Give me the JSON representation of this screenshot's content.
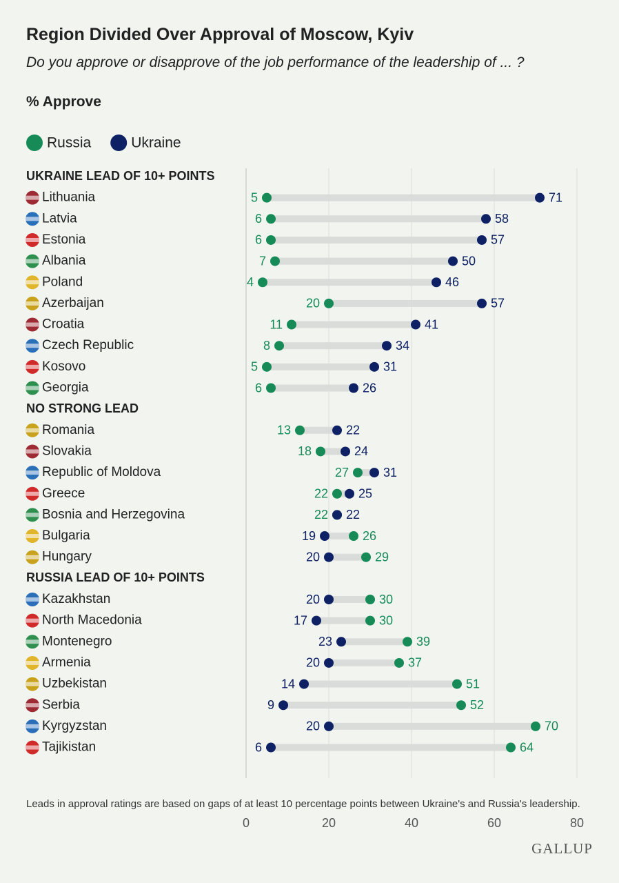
{
  "chart_data": {
    "type": "dumbbell",
    "title": "Region Divided Over Approval of Moscow, Kyiv",
    "subtitle": "Do you approve or disapprove of the job performance of the leadership of ... ?",
    "value_label": "% Approve",
    "footnote": "Leads in approval ratings are based on gaps of at least 10 percentage points between Ukraine's and Russia's leadership.",
    "source": "GALLUP",
    "xlim": [
      0,
      80
    ],
    "xticks": [
      0,
      20,
      40,
      60,
      80
    ],
    "grid": true,
    "groups": [
      {
        "name": "UKRAINE LEAD OF 10+ POINTS",
        "categories": [
          "Lithuania",
          "Latvia",
          "Estonia",
          "Albania",
          "Poland",
          "Azerbaijan",
          "Croatia",
          "Czech Republic",
          "Kosovo",
          "Georgia"
        ]
      },
      {
        "name": "NO STRONG LEAD",
        "categories": [
          "Romania",
          "Slovakia",
          "Republic of Moldova",
          "Greece",
          "Bosnia and Herzegovina",
          "Bulgaria",
          "Hungary"
        ]
      },
      {
        "name": "RUSSIA LEAD OF 10+ POINTS",
        "categories": [
          "Kazakhstan",
          "North Macedonia",
          "Montenegro",
          "Armenia",
          "Uzbekistan",
          "Serbia",
          "Kyrgyzstan",
          "Tajikistan"
        ]
      }
    ],
    "series": [
      {
        "name": "Russia",
        "color": "#168a57",
        "values": [
          [
            5,
            6,
            6,
            7,
            4,
            20,
            11,
            8,
            5,
            6
          ],
          [
            13,
            18,
            27,
            22,
            22,
            26,
            29
          ],
          [
            30,
            30,
            39,
            37,
            51,
            52,
            70,
            64
          ]
        ]
      },
      {
        "name": "Ukraine",
        "color": "#0e2164",
        "values": [
          [
            71,
            58,
            57,
            50,
            46,
            57,
            41,
            34,
            31,
            26
          ],
          [
            22,
            24,
            31,
            25,
            22,
            19,
            20
          ],
          [
            20,
            17,
            23,
            20,
            14,
            9,
            20,
            6
          ]
        ]
      }
    ]
  }
}
